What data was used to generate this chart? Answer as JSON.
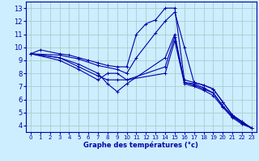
{
  "title": "Graphe des températures (°c)",
  "background_color": "#cceeff",
  "grid_color": "#aacccc",
  "line_color": "#0000aa",
  "xlim": [
    -0.5,
    23.5
  ],
  "ylim": [
    3.5,
    13.5
  ],
  "xticks": [
    0,
    1,
    2,
    3,
    4,
    5,
    6,
    7,
    8,
    9,
    10,
    11,
    12,
    13,
    14,
    15,
    16,
    17,
    18,
    19,
    20,
    21,
    22,
    23
  ],
  "yticks": [
    4,
    5,
    6,
    7,
    8,
    9,
    10,
    11,
    12,
    13
  ],
  "lines": [
    {
      "x": [
        0,
        1,
        3,
        4,
        5,
        6,
        7,
        8,
        9,
        10,
        11,
        12,
        13,
        14,
        15,
        16,
        17,
        18,
        19,
        20,
        21,
        22,
        23
      ],
      "y": [
        9.5,
        9.8,
        9.5,
        9.4,
        9.2,
        9.0,
        8.8,
        8.6,
        8.5,
        8.5,
        11.0,
        11.8,
        12.1,
        13.0,
        13.0,
        7.5,
        7.3,
        7.1,
        6.8,
        5.8,
        4.8,
        4.3,
        3.8
      ]
    },
    {
      "x": [
        0,
        3,
        5,
        7,
        9,
        10,
        11,
        13,
        14,
        15,
        16,
        17,
        18,
        19,
        20,
        21,
        22,
        23
      ],
      "y": [
        9.5,
        9.4,
        9.1,
        8.6,
        8.3,
        8.0,
        9.2,
        11.1,
        12.0,
        12.7,
        10.0,
        7.3,
        7.1,
        6.8,
        5.8,
        4.8,
        4.3,
        3.8
      ]
    },
    {
      "x": [
        0,
        3,
        5,
        7,
        8,
        9,
        10,
        14,
        15,
        16,
        17,
        18,
        19,
        20,
        21,
        22,
        23
      ],
      "y": [
        9.5,
        9.2,
        8.7,
        8.0,
        7.2,
        6.6,
        7.2,
        9.2,
        11.0,
        7.3,
        7.2,
        6.9,
        6.5,
        5.5,
        4.7,
        4.2,
        3.8
      ]
    },
    {
      "x": [
        0,
        3,
        5,
        7,
        8,
        9,
        10,
        14,
        15,
        16,
        17,
        18,
        19,
        20,
        21,
        22,
        23
      ],
      "y": [
        9.5,
        9.2,
        8.5,
        7.8,
        7.5,
        7.5,
        7.5,
        8.5,
        10.8,
        7.3,
        7.1,
        6.8,
        6.5,
        5.5,
        4.7,
        4.2,
        3.8
      ]
    },
    {
      "x": [
        0,
        3,
        5,
        7,
        8,
        9,
        10,
        14,
        15,
        16,
        17,
        18,
        19,
        20,
        21,
        22,
        23
      ],
      "y": [
        9.5,
        9.0,
        8.3,
        7.5,
        8.0,
        8.0,
        7.5,
        8.0,
        10.5,
        7.2,
        7.0,
        6.7,
        6.3,
        5.4,
        4.6,
        4.1,
        3.8
      ]
    }
  ]
}
